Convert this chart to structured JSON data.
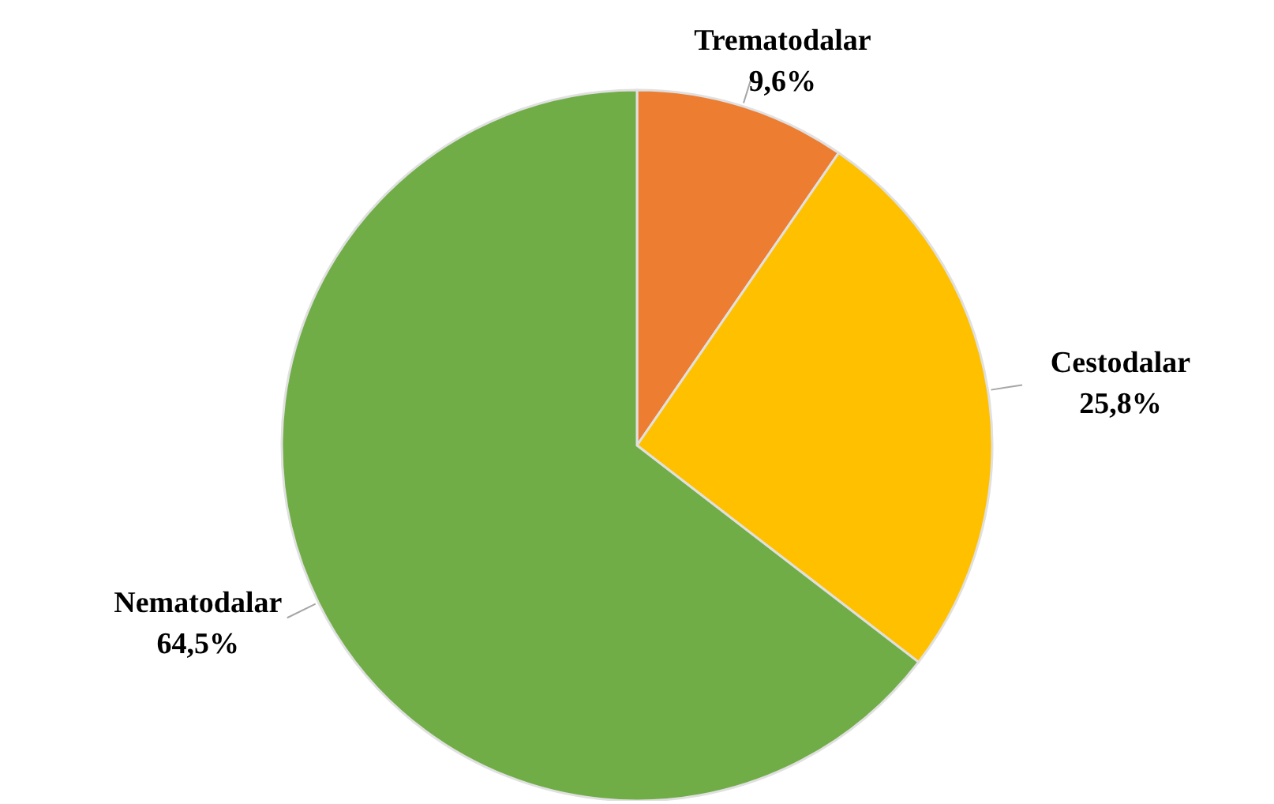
{
  "chart_data": {
    "type": "pie",
    "categories": [
      "Trematodalar",
      "Cestodalar",
      "Nematodalar"
    ],
    "values": [
      9.6,
      25.8,
      64.5
    ],
    "colors": [
      "#ed7d31",
      "#ffc000",
      "#70ad47"
    ],
    "value_labels": [
      "9,6%",
      "25,8%",
      "64,5%"
    ]
  }
}
